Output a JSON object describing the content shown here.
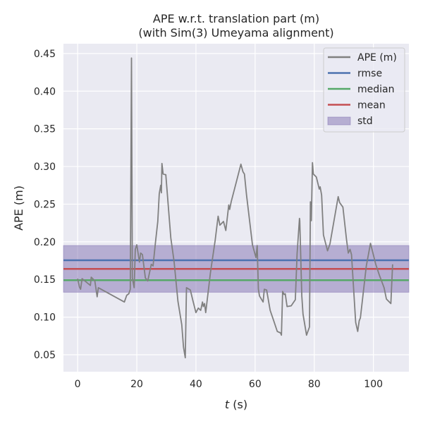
{
  "chart_data": {
    "type": "line",
    "title": [
      "APE w.r.t. translation part (m)",
      "(with Sim(3) Umeyama alignment)"
    ],
    "xlabel_var": "t",
    "xlabel_unit": " (s)",
    "ylabel": "APE (m)",
    "xlim": [
      -4.8,
      112
    ],
    "ylim": [
      0.0275,
      0.463
    ],
    "xticks": [
      0,
      20,
      40,
      60,
      80,
      100
    ],
    "xtick_labels": [
      "0",
      "20",
      "40",
      "60",
      "80",
      "100"
    ],
    "yticks": [
      0.05,
      0.1,
      0.15,
      0.2,
      0.25,
      0.3,
      0.35,
      0.4,
      0.45
    ],
    "ytick_labels": [
      "0.05",
      "0.10",
      "0.15",
      "0.20",
      "0.25",
      "0.30",
      "0.35",
      "0.40",
      "0.45"
    ],
    "grid": true,
    "legend_position": "top-right",
    "legend": [
      "APE (m)",
      "rmse",
      "median",
      "mean",
      "std"
    ],
    "colors": {
      "ape": "#808080",
      "rmse": "#4c72b0",
      "median": "#55a868",
      "mean": "#c44e52",
      "std": "#8172b2",
      "background": "#eaeaf2"
    },
    "stats": {
      "rmse": 0.1755,
      "median": 0.149,
      "mean": 0.164,
      "std_band": [
        0.133,
        0.195
      ]
    },
    "series": [
      {
        "name": "APE (m)",
        "t": [
          0,
          0.6,
          1.0,
          1.5,
          4.3,
          4.6,
          5.8,
          6.6,
          7.0,
          15.8,
          16.6,
          17.3,
          17.8,
          18.2,
          18.5,
          19.1,
          19.5,
          20.0,
          20.9,
          21.3,
          21.9,
          22.9,
          23.7,
          24.9,
          25.5,
          26.3,
          27.1,
          27.6,
          28.1,
          28.3,
          28.5,
          28.9,
          29.8,
          31.5,
          32.6,
          33.9,
          35.2,
          35.8,
          36.4,
          36.8,
          38.1,
          38.9,
          40.0,
          40.8,
          41.6,
          42.2,
          42.5,
          42.9,
          43.3,
          44.9,
          46.5,
          47.5,
          48.1,
          49.3,
          50.1,
          51.1,
          51.4,
          51.9,
          54.4,
          55.2,
          55.9,
          56.4,
          57.1,
          59.1,
          60.3,
          60.7,
          61.1,
          61.5,
          62.7,
          63.1,
          63.9,
          65.1,
          66.3,
          67.5,
          68.6,
          68.9,
          69.3,
          69.8,
          70.2,
          70.8,
          72.2,
          73.6,
          74.2,
          75.0,
          75.1,
          75.8,
          76.2,
          77.4,
          78.4,
          78.7,
          79.0,
          79.4,
          79.7,
          80.7,
          81.7,
          82.0,
          82.5,
          83.1,
          84.5,
          85.3,
          88.1,
          88.6,
          89.7,
          90.9,
          91.5,
          92.1,
          92.6,
          94.0,
          94.7,
          95.2,
          95.6,
          97.6,
          99.0,
          100.8,
          102.0,
          103.6,
          104.4,
          105.9,
          106.5
        ],
        "values": [
          0.151,
          0.14,
          0.137,
          0.151,
          0.142,
          0.153,
          0.148,
          0.127,
          0.139,
          0.12,
          0.129,
          0.131,
          0.137,
          0.444,
          0.152,
          0.139,
          0.19,
          0.196,
          0.173,
          0.185,
          0.183,
          0.152,
          0.148,
          0.17,
          0.168,
          0.199,
          0.227,
          0.264,
          0.275,
          0.265,
          0.304,
          0.29,
          0.289,
          0.205,
          0.174,
          0.121,
          0.09,
          0.06,
          0.046,
          0.139,
          0.136,
          0.123,
          0.106,
          0.112,
          0.109,
          0.12,
          0.114,
          0.118,
          0.106,
          0.159,
          0.202,
          0.234,
          0.222,
          0.227,
          0.215,
          0.249,
          0.243,
          0.253,
          0.291,
          0.303,
          0.293,
          0.29,
          0.262,
          0.196,
          0.179,
          0.195,
          0.137,
          0.128,
          0.12,
          0.137,
          0.136,
          0.109,
          0.095,
          0.081,
          0.079,
          0.076,
          0.134,
          0.13,
          0.131,
          0.114,
          0.115,
          0.123,
          0.184,
          0.231,
          0.228,
          0.128,
          0.104,
          0.076,
          0.087,
          0.253,
          0.228,
          0.305,
          0.29,
          0.286,
          0.27,
          0.273,
          0.262,
          0.209,
          0.188,
          0.197,
          0.26,
          0.252,
          0.246,
          0.203,
          0.185,
          0.19,
          0.183,
          0.093,
          0.081,
          0.095,
          0.099,
          0.168,
          0.198,
          0.17,
          0.156,
          0.139,
          0.124,
          0.118,
          0.17
        ]
      }
    ]
  }
}
